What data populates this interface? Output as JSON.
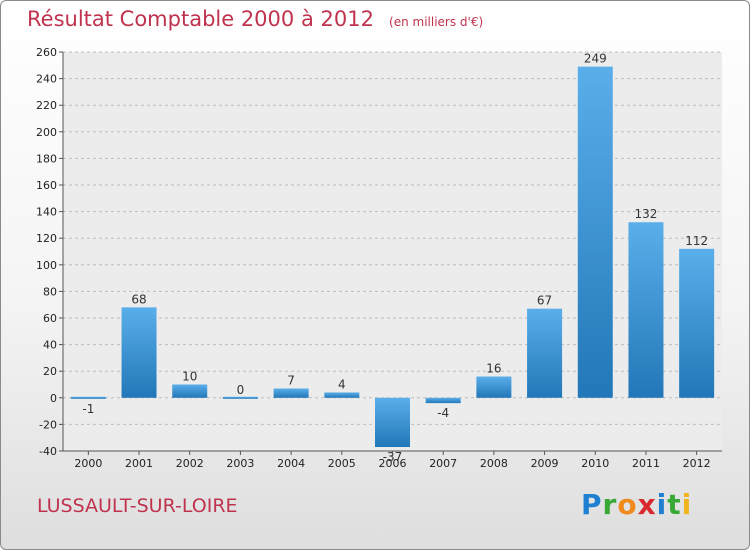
{
  "header": {
    "title": "Résultat Comptable 2000 à 2012",
    "unit": "(en milliers d'€)"
  },
  "footer": {
    "commune": "LUSSAULT-SUR-LOIRE",
    "logo_letters": [
      "P",
      "r",
      "o",
      "x",
      "i",
      "t",
      "i"
    ]
  },
  "colors": {
    "title": "#c0334f",
    "bar_light": "#5aaeea",
    "bar_dark": "#2277b8",
    "grid": "#bdbdbd",
    "axis_text": "#222222"
  },
  "chart_data": {
    "type": "bar",
    "title": "Résultat Comptable 2000 à 2012",
    "subtitle": "(en milliers d'€)",
    "xlabel": "",
    "ylabel": "",
    "categories": [
      "2000",
      "2001",
      "2002",
      "2003",
      "2004",
      "2005",
      "2006",
      "2007",
      "2008",
      "2009",
      "2010",
      "2011",
      "2012"
    ],
    "values": [
      -1,
      68,
      10,
      0,
      7,
      4,
      -37,
      -4,
      16,
      67,
      249,
      132,
      112
    ],
    "labels": [
      "-1",
      "68",
      "10",
      "0",
      "7",
      "4",
      "-37",
      "-4",
      "16",
      "67",
      "249",
      "132",
      "112"
    ],
    "ylim": [
      -40,
      260
    ],
    "yticks": [
      -40,
      -20,
      0,
      20,
      40,
      60,
      80,
      100,
      120,
      140,
      160,
      180,
      200,
      220,
      240,
      260
    ],
    "grid": true,
    "legend": "none"
  }
}
